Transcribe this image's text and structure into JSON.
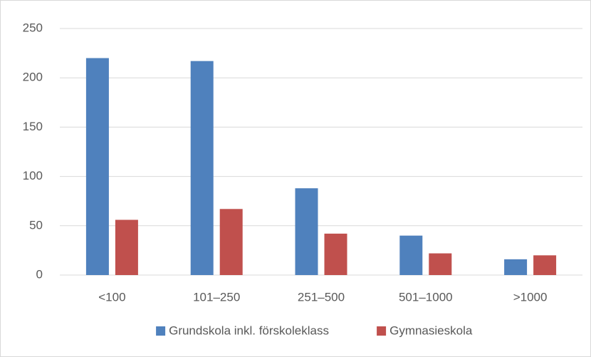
{
  "chart_data": {
    "type": "bar",
    "categories": [
      "<100",
      "101–250",
      "251–500",
      "501–1000",
      ">1000"
    ],
    "series": [
      {
        "name": "Grundskola inkl. förskoleklass",
        "color": "#4f81bd",
        "values": [
          220,
          217,
          88,
          40,
          16
        ]
      },
      {
        "name": "Gymnasieskola",
        "color": "#c0504d",
        "values": [
          56,
          67,
          42,
          22,
          20
        ]
      }
    ],
    "ylim": [
      0,
      250
    ],
    "yticks": [
      0,
      50,
      100,
      150,
      200,
      250
    ],
    "grid": true,
    "legend": "bottom"
  }
}
